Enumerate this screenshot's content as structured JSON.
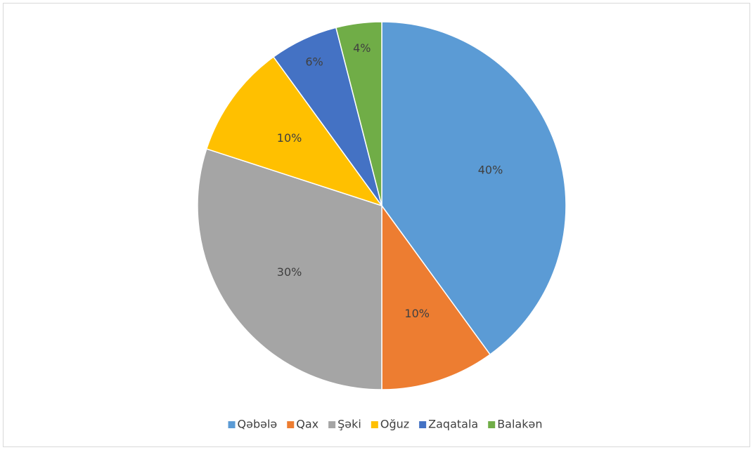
{
  "chart_data": {
    "type": "pie",
    "categories": [
      "Qəbələ",
      "Qax",
      "Şəki",
      "Oğuz",
      "Zaqatala",
      "Balakən"
    ],
    "values": [
      40,
      10,
      30,
      10,
      6,
      4
    ],
    "value_labels": [
      "40%",
      "10%",
      "30%",
      "10%",
      "6%",
      "4%"
    ],
    "colors": [
      "#5b9bd5",
      "#ed7d31",
      "#a5a5a5",
      "#ffc000",
      "#4472c4",
      "#70ad47"
    ],
    "legend": "bottom"
  }
}
